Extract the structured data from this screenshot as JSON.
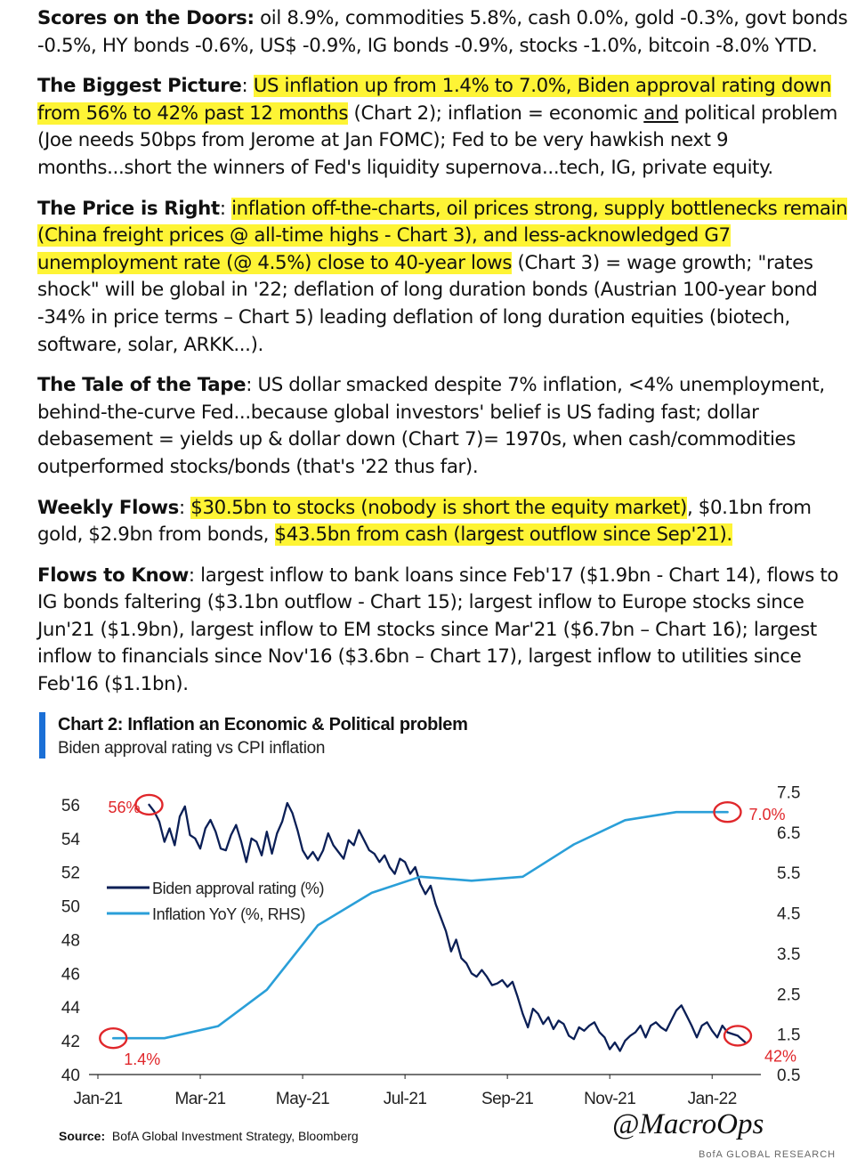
{
  "paragraphs": [
    {
      "key": "scores",
      "parts": [
        {
          "t": "Scores on the Doors:",
          "s": "head"
        },
        {
          "t": " oil 8.9%, commodities 5.8%, cash 0.0%, gold -0.3%,  govt bonds -0.5%, HY bonds -0.6%, US$ -0.9%, IG bonds -0.9%, stocks -1.0%, bitcoin -8.0% YTD."
        }
      ]
    },
    {
      "key": "biggest",
      "parts": [
        {
          "t": "The Biggest Picture",
          "s": "head"
        },
        {
          "t": ": "
        },
        {
          "t": "US inflation up from 1.4% to 7.0%, Biden approval rating down from 56% to 42% past 12 months",
          "s": "hl"
        },
        {
          "t": " (Chart 2); inflation = economic "
        },
        {
          "t": "and",
          "s": "ul"
        },
        {
          "t": " political problem (Joe needs 50bps from Jerome at Jan FOMC); Fed to be very hawkish next 9 months...short the winners of Fed's liquidity supernova...tech, IG, private equity."
        }
      ]
    },
    {
      "key": "price",
      "parts": [
        {
          "t": "The Price is Right",
          "s": "head"
        },
        {
          "t": ": "
        },
        {
          "t": "inflation off-the-charts, oil prices strong, supply bottlenecks remain (China freight prices @ all-time highs - Chart 3), and less-acknowledged G7 unemployment rate (@ 4.5%) close to 40-year lows",
          "s": "hl"
        },
        {
          "t": " (Chart 3) = wage growth; \"rates shock\" will be global in '22; deflation of long duration bonds (Austrian 100-year bond -34% in price terms – Chart 5) leading deflation of long duration equities (biotech, software, solar, ARKK...)."
        }
      ]
    },
    {
      "key": "tape",
      "parts": [
        {
          "t": "The Tale of the Tape",
          "s": "head"
        },
        {
          "t": ": US dollar smacked despite 7% inflation, <4% unemployment, behind-the-curve Fed...because global investors' belief is US fading fast; dollar debasement = yields up & dollar down (Chart 7)= 1970s, when cash/commodities outperformed stocks/bonds (that's '22 thus far)."
        }
      ]
    },
    {
      "key": "flows",
      "parts": [
        {
          "t": "Weekly Flows",
          "s": "head"
        },
        {
          "t": ": "
        },
        {
          "t": "$30.5bn to stocks (nobody is short the equity market)",
          "s": "hl"
        },
        {
          "t": ", $0.1bn from gold, $2.9bn from bonds, "
        },
        {
          "t": "$43.5bn from cash (largest outflow since Sep'21).",
          "s": "hl"
        }
      ]
    },
    {
      "key": "know",
      "parts": [
        {
          "t": "Flows to Know",
          "s": "head"
        },
        {
          "t": ": largest inflow to bank loans since Feb'17 ($1.9bn - Chart 14), flows to IG bonds faltering ($3.1bn outflow - Chart 15); largest inflow to Europe stocks since Jun'21 ($1.9bn), largest inflow to EM stocks since Mar'21 ($6.7bn – Chart 16); largest inflow to financials since Nov'16 ($3.6bn – Chart 17), largest inflow to utilities since Feb'16 ($1.1bn)."
        }
      ]
    }
  ],
  "chart": {
    "title": "Chart 2: Inflation an Economic & Political problem",
    "subtitle": "Biden approval rating vs CPI inflation",
    "source_label": "Source:",
    "source_text": "BofA Global Investment Strategy, Bloomberg",
    "watermark": "@MacroOps",
    "footer_cut": "BofA GLOBAL RESEARCH"
  },
  "chart_data": {
    "type": "line",
    "title": "Chart 2: Inflation an Economic & Political problem",
    "subtitle": "Biden approval rating vs CPI inflation",
    "x_ticks": [
      "Jan-21",
      "Mar-21",
      "May-21",
      "Jul-21",
      "Sep-21",
      "Nov-21",
      "Jan-22"
    ],
    "x_domain": [
      0,
      12.9
    ],
    "y_left": {
      "ticks": [
        40,
        42,
        44,
        46,
        48,
        50,
        52,
        54,
        56
      ],
      "range": [
        40,
        57
      ]
    },
    "y_right": {
      "ticks": [
        0.5,
        1.5,
        2.5,
        3.5,
        4.5,
        5.5,
        6.5,
        7.5
      ],
      "range": [
        0.5,
        7.6
      ]
    },
    "legend": [
      {
        "name": "Biden approval rating (%)",
        "color": "#0b1f56"
      },
      {
        "name": "Inflation YoY (%, RHS)",
        "color": "#2a9fd8"
      }
    ],
    "series": [
      {
        "name": "Biden approval rating (%)",
        "axis": "left",
        "color": "#0b1f56",
        "x": [
          1.0,
          1.1,
          1.2,
          1.3,
          1.4,
          1.5,
          1.6,
          1.7,
          1.8,
          1.9,
          2.0,
          2.1,
          2.2,
          2.3,
          2.4,
          2.5,
          2.6,
          2.7,
          2.8,
          2.9,
          3.0,
          3.1,
          3.2,
          3.3,
          3.4,
          3.5,
          3.6,
          3.7,
          3.8,
          3.9,
          4.0,
          4.1,
          4.2,
          4.3,
          4.4,
          4.5,
          4.6,
          4.7,
          4.8,
          4.9,
          5.0,
          5.1,
          5.2,
          5.3,
          5.4,
          5.5,
          5.6,
          5.7,
          5.8,
          5.9,
          6.0,
          6.1,
          6.2,
          6.3,
          6.4,
          6.5,
          6.6,
          6.7,
          6.8,
          6.9,
          7.0,
          7.1,
          7.2,
          7.3,
          7.4,
          7.5,
          7.6,
          7.7,
          7.8,
          7.9,
          8.0,
          8.1,
          8.2,
          8.3,
          8.4,
          8.5,
          8.6,
          8.7,
          8.8,
          8.9,
          9.0,
          9.1,
          9.2,
          9.3,
          9.4,
          9.5,
          9.6,
          9.7,
          9.8,
          9.9,
          10.0,
          10.1,
          10.2,
          10.3,
          10.4,
          10.5,
          10.6,
          10.7,
          10.8,
          10.9,
          11.0,
          11.1,
          11.2,
          11.3,
          11.4,
          11.5,
          11.6,
          11.7,
          11.8,
          11.9,
          12.0,
          12.1,
          12.2,
          12.3,
          12.5,
          12.65
        ],
        "values": [
          56.0,
          55.6,
          55.0,
          53.8,
          54.6,
          53.6,
          55.3,
          55.9,
          54.2,
          54.0,
          53.4,
          54.6,
          55.1,
          54.4,
          53.4,
          53.3,
          54.2,
          54.8,
          53.8,
          52.6,
          54.0,
          53.8,
          53.0,
          54.4,
          53.1,
          54.3,
          55.0,
          56.1,
          55.5,
          54.5,
          53.3,
          52.8,
          53.2,
          52.7,
          53.3,
          54.3,
          53.6,
          53.2,
          52.8,
          53.9,
          53.6,
          54.5,
          53.9,
          53.3,
          53.1,
          52.6,
          53.0,
          52.3,
          51.9,
          52.8,
          52.6,
          51.9,
          52.3,
          51.3,
          50.7,
          51.2,
          50.1,
          49.3,
          48.5,
          47.3,
          48.0,
          46.9,
          46.6,
          46.0,
          45.8,
          46.2,
          45.8,
          45.3,
          45.4,
          45.6,
          45.2,
          45.5,
          44.6,
          43.6,
          42.8,
          43.9,
          43.6,
          43.0,
          43.4,
          42.7,
          43.2,
          43.0,
          42.3,
          42.1,
          42.8,
          42.6,
          42.9,
          43.1,
          42.5,
          42.2,
          41.5,
          41.9,
          41.4,
          42.0,
          42.3,
          42.5,
          42.9,
          42.2,
          42.9,
          43.1,
          42.8,
          42.6,
          43.2,
          43.8,
          44.1,
          43.5,
          42.9,
          42.2,
          42.9,
          43.1,
          42.6,
          42.2,
          42.9,
          42.5,
          42.3,
          41.9
        ]
      },
      {
        "name": "Inflation YoY (%, RHS)",
        "axis": "right",
        "color": "#2a9fd8",
        "x": [
          0.3,
          1.3,
          2.35,
          3.3,
          4.3,
          5.35,
          6.3,
          7.3,
          8.3,
          9.3,
          10.3,
          11.3,
          12.3
        ],
        "values": [
          1.4,
          1.4,
          1.7,
          2.6,
          4.2,
          5.0,
          5.4,
          5.3,
          5.4,
          6.2,
          6.8,
          7.0,
          7.0
        ]
      }
    ],
    "annotations": [
      {
        "label": "56%",
        "series": "Biden approval rating (%)",
        "x": 1.0,
        "value": 56.0,
        "color": "#e0272b"
      },
      {
        "label": "1.4%",
        "series": "Inflation YoY (%, RHS)",
        "x": 0.3,
        "value": 1.4,
        "color": "#e0272b"
      },
      {
        "label": "7.0%",
        "series": "Inflation YoY (%, RHS)",
        "x": 12.3,
        "value": 7.0,
        "color": "#e0272b"
      },
      {
        "label": "42%",
        "series": "Biden approval rating (%)",
        "x": 12.5,
        "value": 42.3,
        "color": "#e0272b"
      }
    ]
  }
}
